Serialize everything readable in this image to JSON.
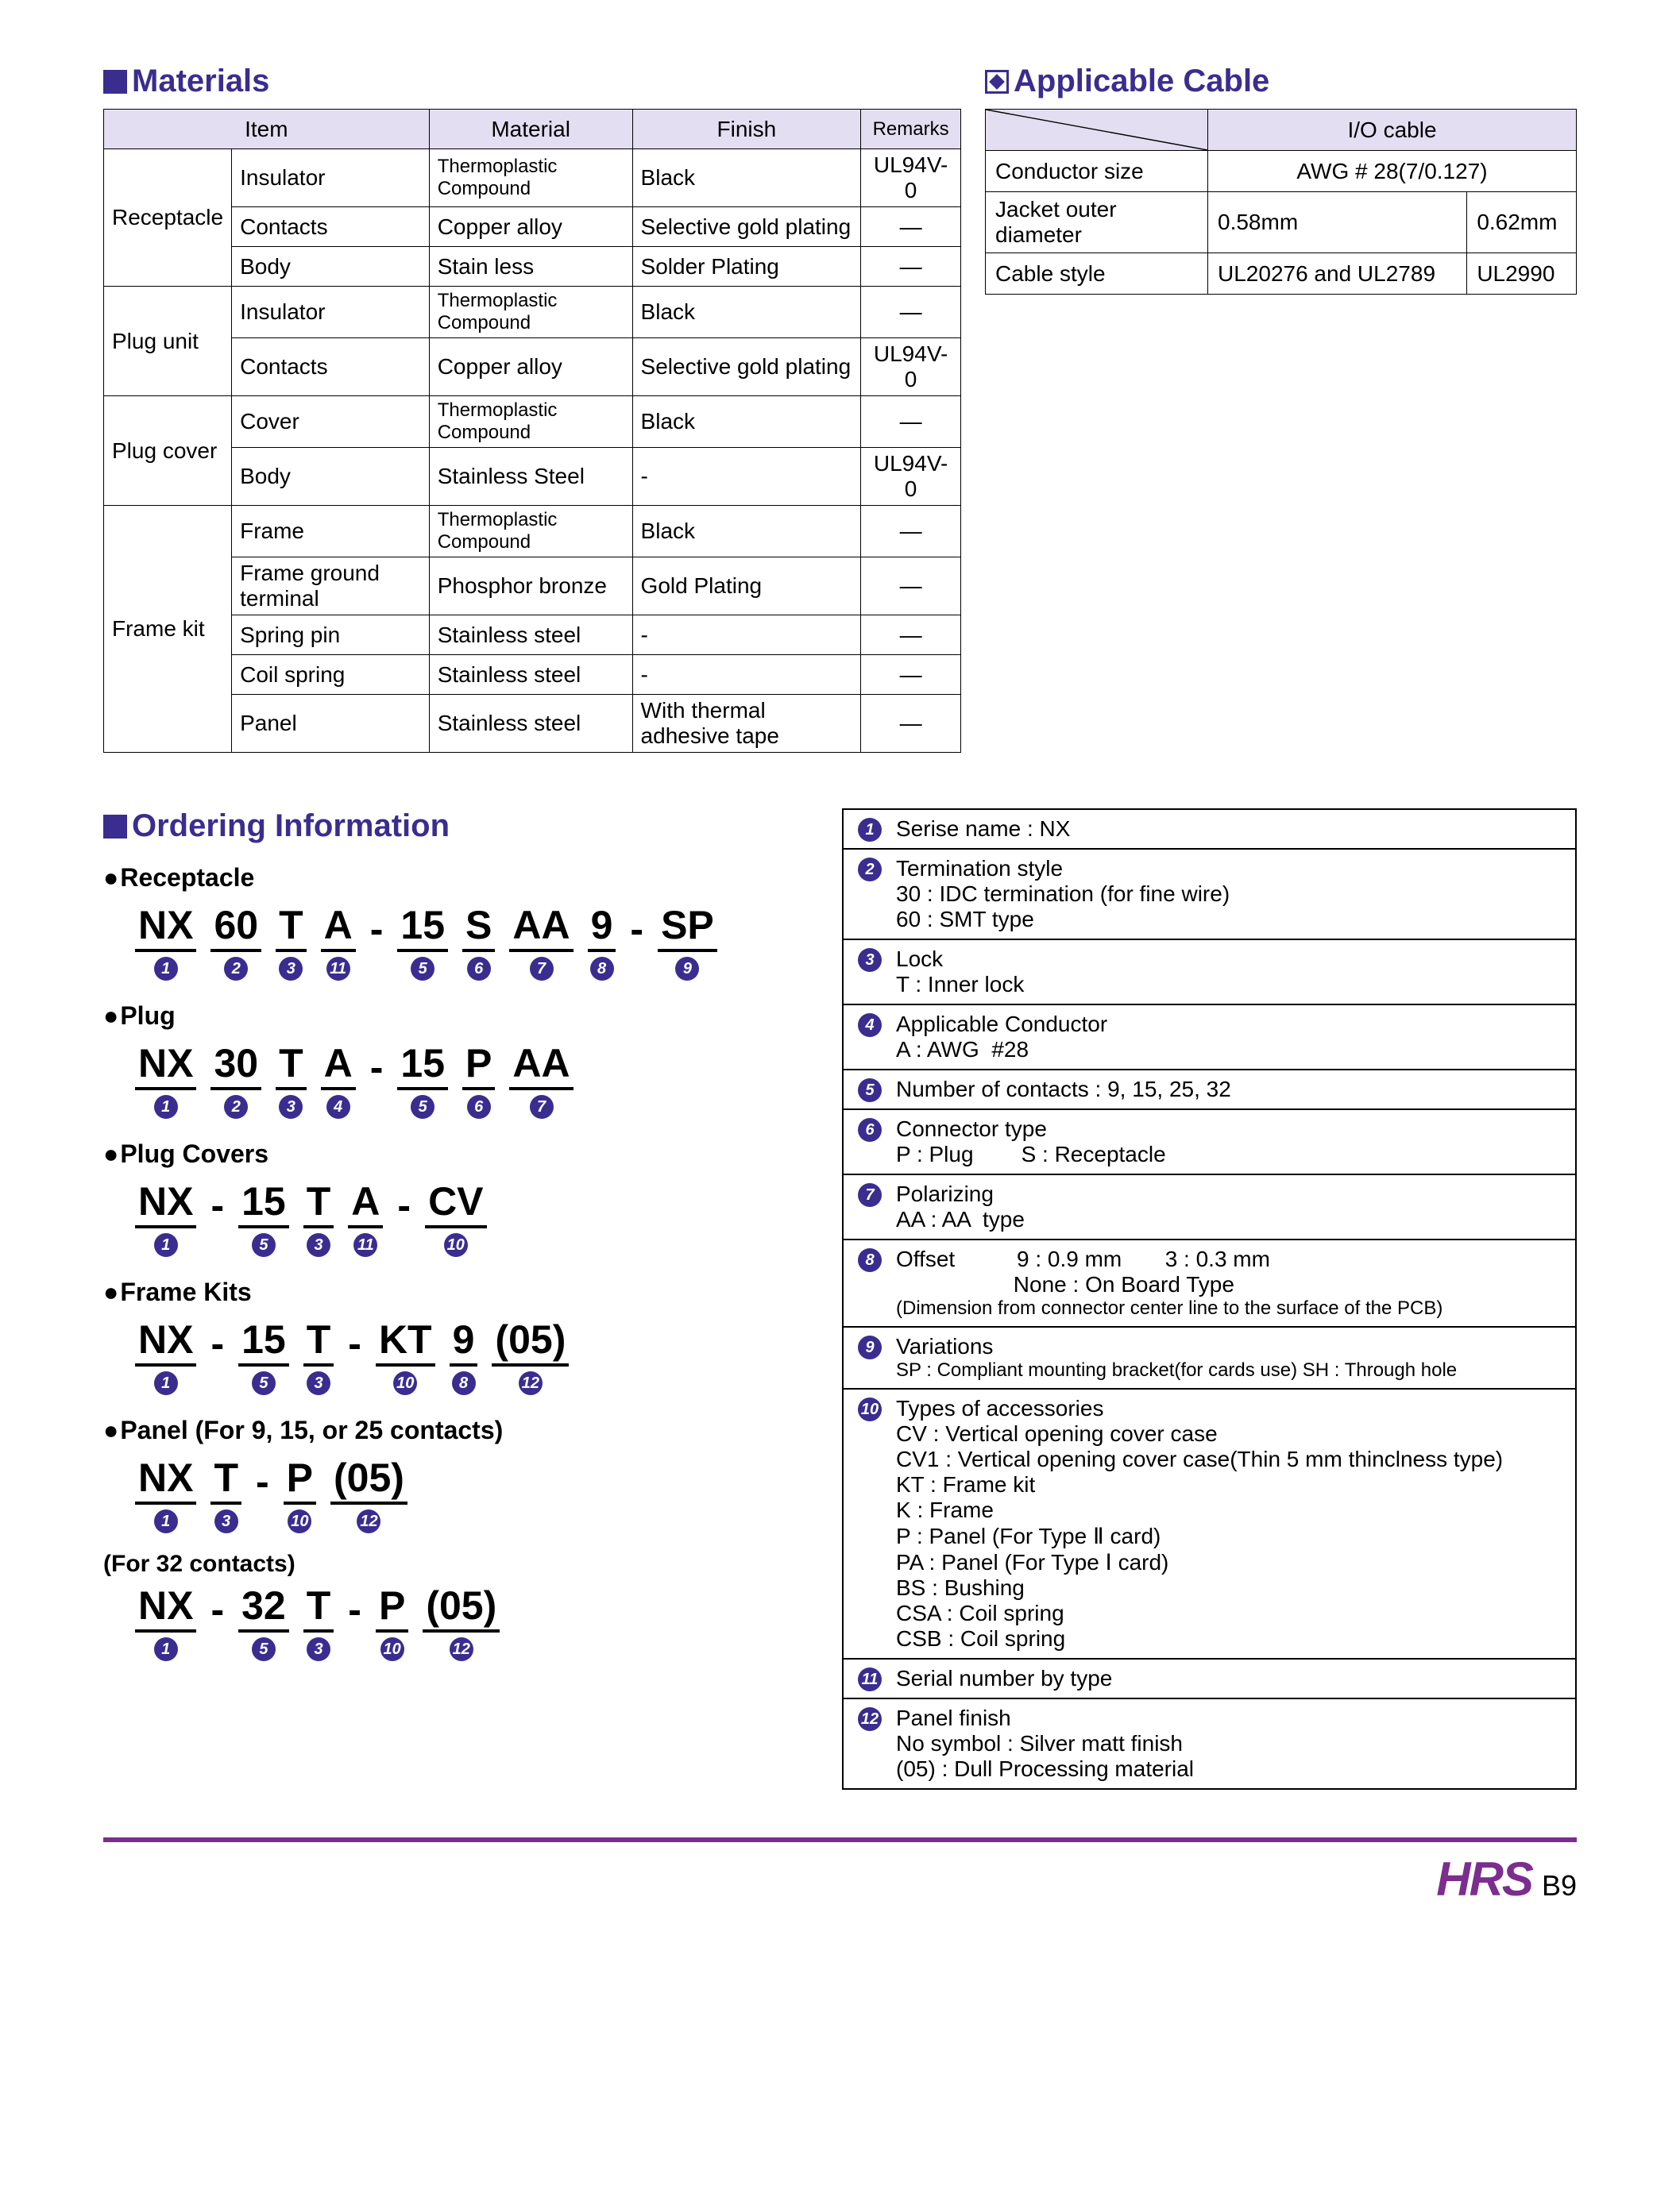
{
  "headings": {
    "materials": "Materials",
    "applicable_cable": "Applicable Cable",
    "ordering": "Ordering Information"
  },
  "colors": {
    "heading": "#3a2d8f",
    "accent": "#3a2d8f",
    "footer_rule": "#7b2e8e",
    "table_header_bg": "#e4def2"
  },
  "materials": {
    "headers": [
      "Item",
      "Material",
      "Finish",
      "Remarks"
    ],
    "groups": [
      {
        "name": "Receptacle",
        "rows": [
          {
            "item": "Insulator",
            "material": "Thermoplastic Compound",
            "finish": "Black",
            "remarks": "UL94V-0"
          },
          {
            "item": "Contacts",
            "material": "Copper alloy",
            "finish": "Selective gold plating",
            "remarks": "—"
          },
          {
            "item": "Body",
            "material": "Stain less",
            "finish": "Solder Plating",
            "remarks": "—"
          }
        ]
      },
      {
        "name": "Plug unit",
        "rows": [
          {
            "item": "Insulator",
            "material": "Thermoplastic Compound",
            "finish": "Black",
            "remarks": "—"
          },
          {
            "item": "Contacts",
            "material": "Copper alloy",
            "finish": "Selective gold plating",
            "remarks": "UL94V-0"
          }
        ]
      },
      {
        "name": "Plug cover",
        "rows": [
          {
            "item": "Cover",
            "material": "Thermoplastic Compound",
            "finish": "Black",
            "remarks": "—"
          },
          {
            "item": "Body",
            "material": "Stainless Steel",
            "finish": "-",
            "remarks": "UL94V-0"
          }
        ]
      },
      {
        "name": "Frame kit",
        "rows": [
          {
            "item": "Frame",
            "material": "Thermoplastic Compound",
            "finish": "Black",
            "remarks": "—"
          },
          {
            "item": "Frame ground terminal",
            "material": "Phosphor bronze",
            "finish": "Gold Plating",
            "remarks": "—"
          },
          {
            "item": "Spring pin",
            "material": "Stainless steel",
            "finish": "-",
            "remarks": "—"
          },
          {
            "item": "Coil spring",
            "material": "Stainless steel",
            "finish": "-",
            "remarks": "—"
          },
          {
            "item": "Panel",
            "material": "Stainless steel",
            "finish": "With thermal adhesive tape",
            "remarks": "—"
          }
        ]
      }
    ]
  },
  "applicable_cable": {
    "header": "I/O cable",
    "rows": [
      {
        "label": "Conductor size",
        "val": "AWG # 28(7/0.127)",
        "span": true
      },
      {
        "label": "Jacket outer diameter",
        "v1": "0.58mm",
        "v2": "0.62mm"
      },
      {
        "label": "Cable style",
        "v1": "UL20276 and UL2789",
        "v2": "UL2990"
      }
    ]
  },
  "ordering": {
    "sections": [
      {
        "title": "Receptacle",
        "segs": [
          {
            "t": "NX",
            "n": 1
          },
          {
            "t": "60",
            "n": 2
          },
          {
            "t": "T",
            "n": 3
          },
          {
            "t": "A",
            "n": 11
          },
          {
            "dash": true
          },
          {
            "t": "15",
            "n": 5
          },
          {
            "t": "S",
            "n": 6
          },
          {
            "t": "AA",
            "n": 7
          },
          {
            "t": "9",
            "n": 8
          },
          {
            "dash": true
          },
          {
            "t": "SP",
            "n": 9
          }
        ]
      },
      {
        "title": "Plug",
        "segs": [
          {
            "t": "NX",
            "n": 1
          },
          {
            "t": "30",
            "n": 2
          },
          {
            "t": "T",
            "n": 3
          },
          {
            "t": "A",
            "n": 4
          },
          {
            "dash": true
          },
          {
            "t": "15",
            "n": 5
          },
          {
            "t": "P",
            "n": 6
          },
          {
            "t": "AA",
            "n": 7
          }
        ]
      },
      {
        "title": "Plug Covers",
        "segs": [
          {
            "t": "NX",
            "n": 1
          },
          {
            "dash": true
          },
          {
            "t": "15",
            "n": 5
          },
          {
            "t": "T",
            "n": 3
          },
          {
            "t": "A",
            "n": 11
          },
          {
            "dash": true
          },
          {
            "t": "CV",
            "n": 10
          }
        ]
      },
      {
        "title": "Frame Kits",
        "segs": [
          {
            "t": "NX",
            "n": 1
          },
          {
            "dash": true
          },
          {
            "t": "15",
            "n": 5
          },
          {
            "t": "T",
            "n": 3
          },
          {
            "dash": true
          },
          {
            "t": "KT",
            "n": 10
          },
          {
            "t": "9",
            "n": 8
          },
          {
            "t": "(05)",
            "n": 12
          }
        ]
      },
      {
        "title": "Panel (For 9, 15, or 25 contacts)",
        "segs": [
          {
            "t": "NX",
            "n": 1
          },
          {
            "t": "T",
            "n": 3
          },
          {
            "dash": true
          },
          {
            "t": "P",
            "n": 10
          },
          {
            "t": "(05)",
            "n": 12
          }
        ]
      }
    ],
    "extra_note": "(For 32 contacts)",
    "extra_segs": [
      {
        "t": "NX",
        "n": 1
      },
      {
        "dash": true
      },
      {
        "t": "32",
        "n": 5
      },
      {
        "t": "T",
        "n": 3
      },
      {
        "dash": true
      },
      {
        "t": "P",
        "n": 10
      },
      {
        "t": "(05)",
        "n": 12
      }
    ]
  },
  "legend": [
    {
      "n": 1,
      "lines": [
        "Serise name : NX"
      ]
    },
    {
      "n": 2,
      "lines": [
        "Termination style",
        "30 : IDC termination (for fine wire)",
        "60 : SMT type"
      ]
    },
    {
      "n": 3,
      "lines": [
        "Lock",
        "T : Inner lock"
      ]
    },
    {
      "n": 4,
      "lines": [
        "Applicable Conductor",
        "A : AWG  #28"
      ]
    },
    {
      "n": 5,
      "lines": [
        "Number of contacts : 9, 15, 25, 32"
      ]
    },
    {
      "n": 6,
      "lines": [
        "Connector type"
      ],
      "pair": [
        "P : Plug",
        "S : Receptacle"
      ]
    },
    {
      "n": 7,
      "lines": [
        "Polarizing",
        "AA : AA  type"
      ]
    },
    {
      "n": 8,
      "lines": [
        "Offset          9 : 0.9 mm       3 : 0.3 mm",
        "                   None : On Board Type"
      ],
      "note": "(Dimension from connector center line to the surface of the PCB)"
    },
    {
      "n": 9,
      "lines": [
        "Variations"
      ],
      "note": "SP : Compliant mounting bracket(for cards use)   SH : Through hole"
    },
    {
      "n": 10,
      "lines": [
        "Types of accessories",
        "CV : Vertical opening cover case",
        "CV1 : Vertical opening cover case(Thin 5 mm thinclness type)",
        "KT : Frame kit",
        "K : Frame",
        "P : Panel (For Type Ⅱ card)",
        "PA : Panel (For Type Ⅰ card)",
        "BS : Bushing",
        "CSA : Coil spring",
        "CSB : Coil spring"
      ]
    },
    {
      "n": 11,
      "lines": [
        "Serial number by type"
      ]
    },
    {
      "n": 12,
      "lines": [
        "Panel finish",
        "No symbol : Silver matt finish",
        "(05) : Dull Processing material"
      ]
    }
  ],
  "footer": {
    "logo": "HRS",
    "page": "B9"
  }
}
